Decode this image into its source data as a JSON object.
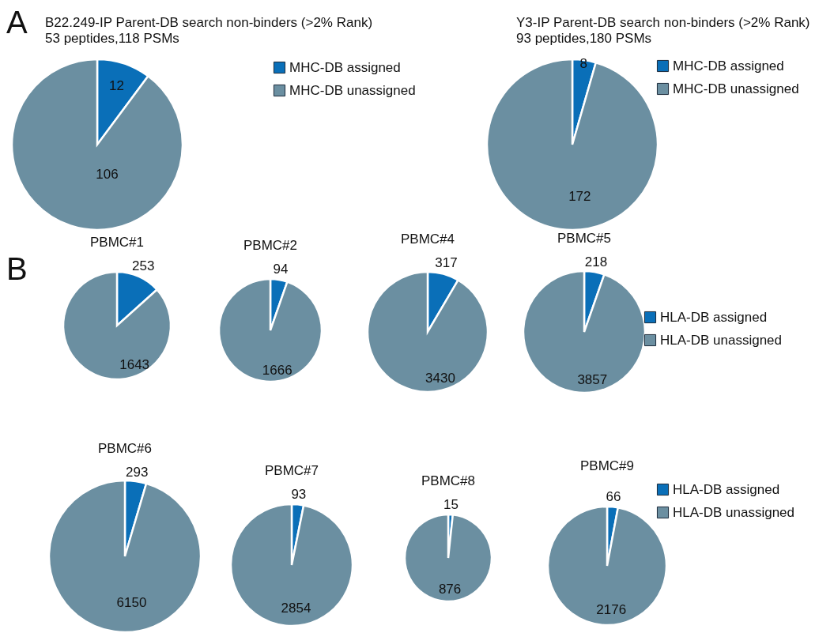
{
  "chart_data": [
    {
      "type": "pie",
      "title": "B22.249-IP Parent-DB search non-binders (>2% Rank)",
      "subtitle": "53 peptides,118 PSMs",
      "annotations": [
        "A"
      ],
      "categories": [
        "MHC-DB assigned",
        "MHC-DB unassigned"
      ],
      "values": [
        12,
        106
      ],
      "colors": [
        "#0a6fb8",
        "#6b8fa1"
      ],
      "data_labels": true,
      "legend": "right"
    },
    {
      "type": "pie",
      "title": "Y3-IP Parent-DB search non-binders (>2% Rank)",
      "subtitle": "93 peptides,180 PSMs",
      "categories": [
        "MHC-DB assigned",
        "MHC-DB unassigned"
      ],
      "values": [
        8,
        172
      ],
      "colors": [
        "#0a6fb8",
        "#6b8fa1"
      ],
      "data_labels": true,
      "legend": "right"
    },
    {
      "type": "pie",
      "title": "PBMC#1",
      "annotations": [
        "B"
      ],
      "categories": [
        null,
        null
      ],
      "values": [
        253,
        1643
      ],
      "colors": [
        "#0a6fb8",
        "#6b8fa1"
      ],
      "data_labels": true
    },
    {
      "type": "pie",
      "title": "PBMC#2",
      "categories": [
        null,
        null
      ],
      "values": [
        94,
        1666
      ],
      "colors": [
        "#0a6fb8",
        "#6b8fa1"
      ],
      "data_labels": true
    },
    {
      "type": "pie",
      "title": "PBMC#4",
      "categories": [
        null,
        null
      ],
      "values": [
        317,
        3430
      ],
      "colors": [
        "#0a6fb8",
        "#6b8fa1"
      ],
      "data_labels": true
    },
    {
      "type": "pie",
      "title": "PBMC#5",
      "categories": [
        "HLA-DB assigned",
        "HLA-DB unassigned"
      ],
      "values": [
        218,
        3857
      ],
      "colors": [
        "#0a6fb8",
        "#6b8fa1"
      ],
      "data_labels": true,
      "legend": "right"
    },
    {
      "type": "pie",
      "title": "PBMC#6",
      "categories": [
        null,
        null
      ],
      "values": [
        293,
        6150
      ],
      "colors": [
        "#0a6fb8",
        "#6b8fa1"
      ],
      "data_labels": true
    },
    {
      "type": "pie",
      "title": "PBMC#7",
      "categories": [
        null,
        null
      ],
      "values": [
        93,
        2854
      ],
      "colors": [
        "#0a6fb8",
        "#6b8fa1"
      ],
      "data_labels": true
    },
    {
      "type": "pie",
      "title": "PBMC#8",
      "categories": [
        null,
        null
      ],
      "values": [
        15,
        876
      ],
      "colors": [
        "#0a6fb8",
        "#6b8fa1"
      ],
      "data_labels": true
    },
    {
      "type": "pie",
      "title": "PBMC#9",
      "categories": [
        "HLA-DB assigned",
        "HLA-DB unassigned"
      ],
      "values": [
        66,
        2176
      ],
      "colors": [
        "#0a6fb8",
        "#6b8fa1"
      ],
      "data_labels": true,
      "legend": "right"
    }
  ]
}
